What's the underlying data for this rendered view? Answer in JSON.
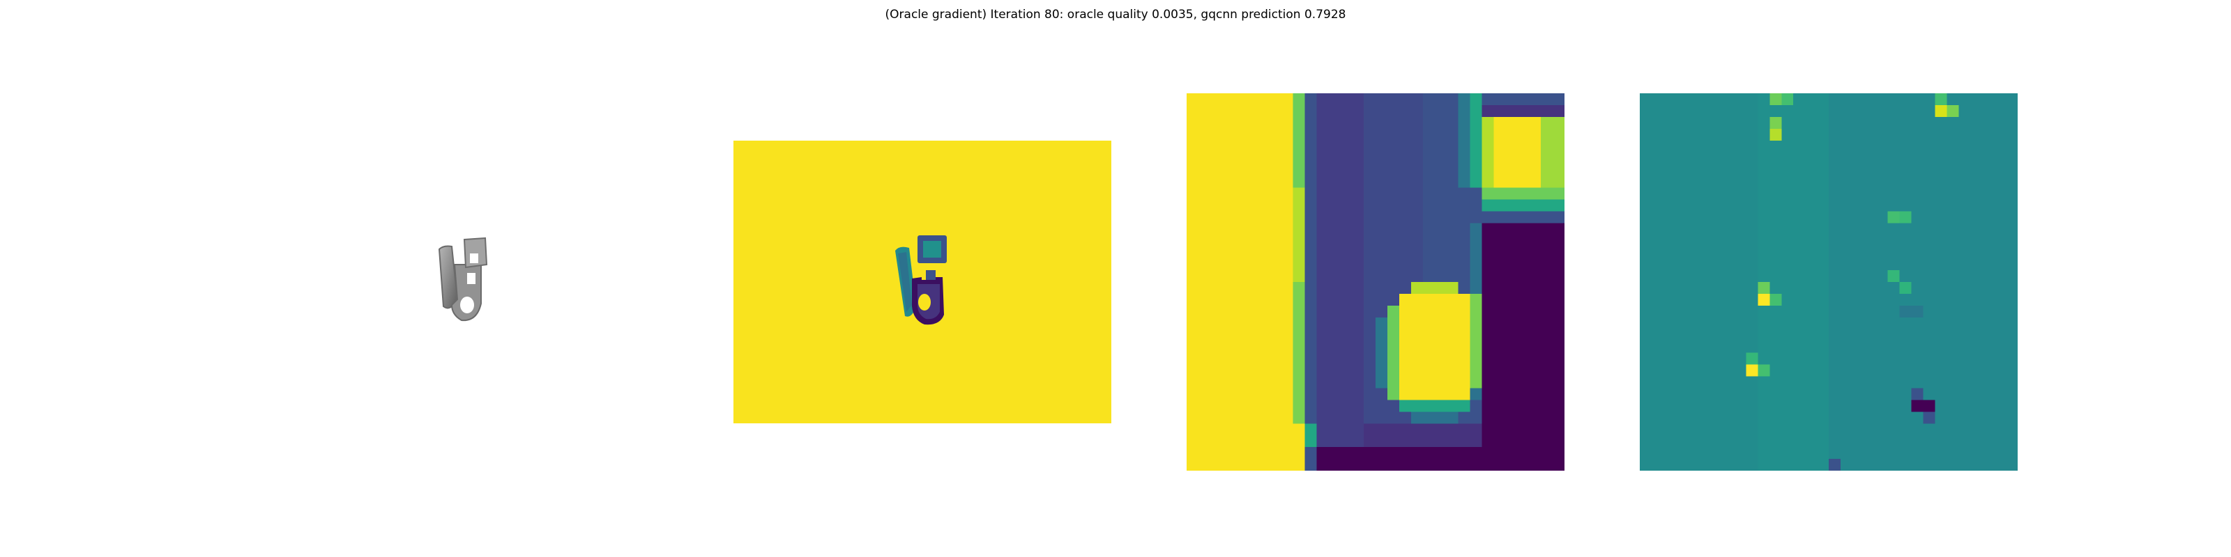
{
  "figure": {
    "title": "(Oracle gradient) Iteration 80: oracle quality 0.0035, gqcnn prediction 0.7928"
  },
  "panels": [
    {
      "id": "object-render",
      "content": "grayscale rendered object"
    },
    {
      "id": "depth-image-full",
      "content": "full depth image, viridis colormap"
    },
    {
      "id": "depth-image-crop",
      "content": "cropped depth patch, viridis colormap"
    },
    {
      "id": "oracle-gradient-map",
      "content": "gradient map, viridis colormap"
    }
  ],
  "colors": {
    "viridis_yellow": "#f9e31e",
    "viridis_teal": "#1e8b8c",
    "viridis_green": "#4cc26c",
    "viridis_blue": "#3b528b",
    "viridis_purple": "#3b0f60",
    "viridis_dark": "#440154",
    "object_gray": "#8a8a8a"
  }
}
